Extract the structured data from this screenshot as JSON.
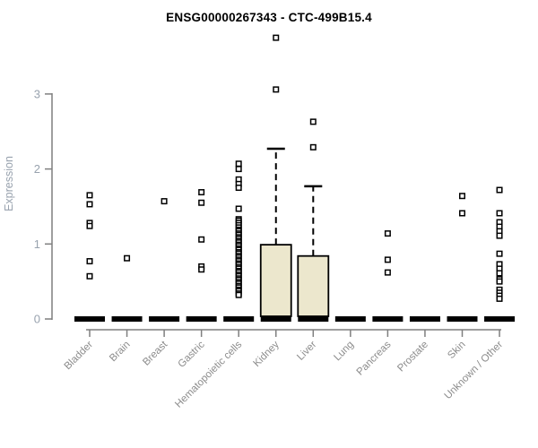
{
  "title": "ENSG00000267343 - CTC-499B15.4",
  "colors": {
    "box_fill": "#ece7cd",
    "box_stroke": "#000000",
    "axis": "#7f7f7f",
    "ytick_label": "#98a2ae",
    "xtick_label": "#8c8c8c",
    "title": "#000000",
    "outlier_fill": "#ffffff",
    "outlier_stroke": "#000000",
    "median_bar": "#000000"
  },
  "chart_data": {
    "type": "boxplot",
    "title": "ENSG00000267343 - CTC-499B15.4",
    "xlabel": "",
    "ylabel": "Expression",
    "yticks": [
      0,
      1,
      2,
      3
    ],
    "ylim": [
      0,
      3.9
    ],
    "grid": false,
    "legend": "none",
    "categories": [
      "Bladder",
      "Brain",
      "Breast",
      "Gastric",
      "Hematopoietic cells",
      "Kidney",
      "Liver",
      "Lung",
      "Pancreas",
      "Prostate",
      "Skin",
      "Unknown / Other"
    ],
    "boxes": [
      {
        "category": "Bladder",
        "median": 0,
        "q1": 0,
        "q3": 0,
        "whisker_low": 0,
        "whisker_high": 0,
        "outliers": [
          1.65,
          1.53,
          1.28,
          1.24,
          0.77,
          0.57
        ]
      },
      {
        "category": "Brain",
        "median": 0,
        "q1": 0,
        "q3": 0,
        "whisker_low": 0,
        "whisker_high": 0,
        "outliers": [
          0.81
        ]
      },
      {
        "category": "Breast",
        "median": 0,
        "q1": 0,
        "q3": 0,
        "whisker_low": 0,
        "whisker_high": 0,
        "outliers": [
          1.57
        ]
      },
      {
        "category": "Gastric",
        "median": 0,
        "q1": 0,
        "q3": 0,
        "whisker_low": 0,
        "whisker_high": 0,
        "outliers": [
          1.69,
          1.55,
          1.06,
          0.7,
          0.66
        ]
      },
      {
        "category": "Hematopoietic cells",
        "median": 0,
        "q1": 0,
        "q3": 0,
        "whisker_low": 0,
        "whisker_high": 0,
        "outliers": [
          2.07,
          2.0,
          1.86,
          1.8,
          1.75,
          1.47,
          1.33,
          1.31,
          1.28,
          1.25,
          1.22,
          1.19,
          1.17,
          1.14,
          1.12,
          1.09,
          1.07,
          1.04,
          1.02,
          0.99,
          0.97,
          0.94,
          0.92,
          0.89,
          0.87,
          0.84,
          0.82,
          0.79,
          0.77,
          0.74,
          0.72,
          0.69,
          0.67,
          0.64,
          0.62,
          0.59,
          0.57,
          0.54,
          0.52,
          0.49,
          0.47,
          0.44,
          0.42,
          0.39,
          0.37,
          0.34,
          0.32
        ]
      },
      {
        "category": "Kidney",
        "median": 0,
        "q1": 0,
        "q3": 0.99,
        "whisker_low": 0,
        "whisker_high": 2.27,
        "outliers": [
          3.75,
          3.06
        ]
      },
      {
        "category": "Liver",
        "median": 0,
        "q1": 0,
        "q3": 0.84,
        "whisker_low": 0,
        "whisker_high": 1.77,
        "outliers": [
          2.63,
          2.29
        ]
      },
      {
        "category": "Lung",
        "median": 0,
        "q1": 0,
        "q3": 0,
        "whisker_low": 0,
        "whisker_high": 0,
        "outliers": []
      },
      {
        "category": "Pancreas",
        "median": 0,
        "q1": 0,
        "q3": 0,
        "whisker_low": 0,
        "whisker_high": 0,
        "outliers": [
          1.14,
          0.79,
          0.62
        ]
      },
      {
        "category": "Prostate",
        "median": 0,
        "q1": 0,
        "q3": 0,
        "whisker_low": 0,
        "whisker_high": 0,
        "outliers": []
      },
      {
        "category": "Skin",
        "median": 0,
        "q1": 0,
        "q3": 0,
        "whisker_low": 0,
        "whisker_high": 0,
        "outliers": [
          1.64,
          1.41
        ]
      },
      {
        "category": "Unknown / Other",
        "median": 0,
        "q1": 0,
        "q3": 0,
        "whisker_low": 0,
        "whisker_high": 0,
        "outliers": [
          1.72,
          1.41,
          1.29,
          1.23,
          1.17,
          1.11,
          0.87,
          0.73,
          0.67,
          0.61,
          0.53,
          0.5,
          0.39,
          0.35,
          0.31,
          0.27
        ]
      }
    ]
  }
}
